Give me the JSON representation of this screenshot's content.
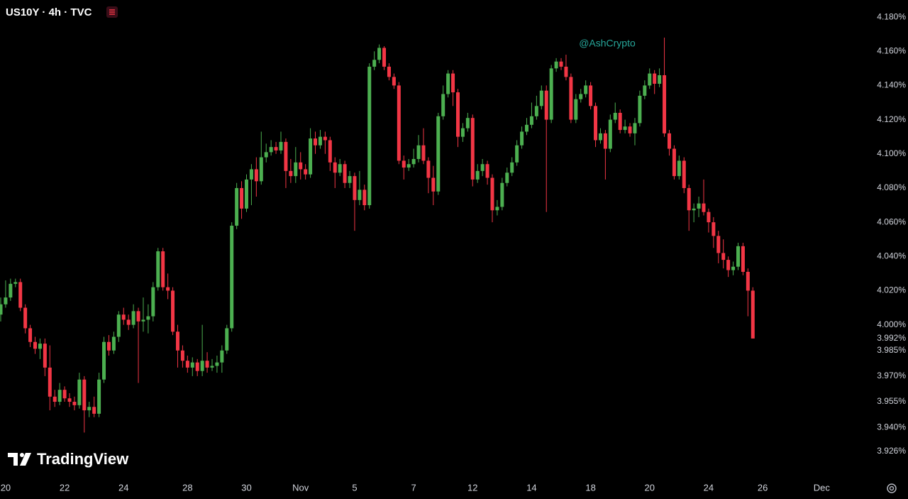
{
  "chart_data": {
    "type": "candlestick",
    "title": "US10Y · 4h · TVC",
    "annotation": "@AshCrypto",
    "brand": "TradingView",
    "up_color": "#4caf50",
    "down_color": "#f23645",
    "categories": [
      null,
      "20",
      null,
      null,
      null,
      null,
      null,
      null,
      null,
      null,
      null,
      null,
      null,
      "22",
      null,
      null,
      null,
      null,
      null,
      null,
      null,
      null,
      null,
      null,
      null,
      "24",
      null,
      null,
      null,
      null,
      null,
      null,
      null,
      null,
      null,
      null,
      null,
      null,
      "28",
      null,
      null,
      null,
      null,
      null,
      null,
      null,
      null,
      null,
      null,
      null,
      "30",
      null,
      null,
      null,
      null,
      null,
      null,
      null,
      null,
      null,
      null,
      "Nov",
      null,
      null,
      null,
      null,
      null,
      null,
      null,
      null,
      null,
      null,
      "5",
      null,
      null,
      null,
      null,
      null,
      null,
      null,
      null,
      null,
      null,
      null,
      "7",
      null,
      null,
      null,
      null,
      null,
      null,
      null,
      null,
      null,
      null,
      null,
      "12",
      null,
      null,
      null,
      null,
      null,
      null,
      null,
      null,
      null,
      null,
      null,
      "14",
      null,
      null,
      null,
      null,
      null,
      null,
      null,
      null,
      null,
      null,
      null,
      "18",
      null,
      null,
      null,
      null,
      null,
      null,
      null,
      null,
      null,
      null,
      null,
      "20",
      null,
      null,
      null,
      null,
      null,
      null,
      null,
      null,
      null,
      null,
      null,
      "24",
      null,
      null,
      null,
      null,
      null,
      null,
      null,
      null,
      null,
      null,
      "26",
      null,
      null,
      null,
      null,
      null,
      null,
      null,
      null,
      null,
      null,
      null,
      "Dec"
    ],
    "open": [
      4.006,
      4.012,
      4.016,
      4.024,
      4.025,
      4.01,
      3.998,
      3.99,
      3.986,
      3.989,
      3.975,
      3.958,
      3.955,
      3.962,
      3.957,
      3.955,
      3.953,
      3.968,
      3.95,
      3.952,
      3.948,
      3.968,
      3.99,
      3.985,
      3.993,
      4.006,
      4.003,
      4.0,
      4.008,
      4.002,
      4.003,
      4.005,
      4.022,
      4.043,
      4.022,
      4.02,
      3.996,
      3.985,
      3.979,
      3.975,
      3.978,
      3.973,
      3.979,
      3.975,
      3.976,
      3.978,
      3.985,
      3.998,
      4.058,
      4.08,
      4.068,
      4.085,
      4.091,
      4.084,
      4.098,
      4.101,
      4.104,
      4.102,
      4.107,
      4.09,
      4.087,
      4.095,
      4.091,
      4.088,
      4.109,
      4.105,
      4.11,
      4.108,
      4.095,
      4.089,
      4.094,
      4.083,
      4.087,
      4.073,
      4.079,
      4.07,
      4.151,
      4.155,
      4.162,
      4.151,
      4.145,
      4.14,
      4.096,
      4.092,
      4.094,
      4.097,
      4.105,
      4.096,
      4.086,
      4.078,
      4.122,
      4.135,
      4.147,
      4.136,
      4.11,
      4.115,
      4.121,
      4.085,
      4.09,
      4.094,
      4.086,
      4.067,
      4.069,
      4.083,
      4.089,
      4.095,
      4.105,
      4.113,
      4.117,
      4.122,
      4.128,
      4.137,
      4.12,
      4.15,
      4.154,
      4.151,
      4.145,
      4.12,
      4.132,
      4.135,
      4.14,
      4.128,
      4.108,
      4.112,
      4.103,
      4.12,
      4.124,
      4.114,
      4.116,
      4.112,
      4.118,
      4.134,
      4.14,
      4.147,
      4.141,
      4.146,
      4.112,
      4.103,
      4.087,
      4.096,
      4.08,
      4.067,
      4.068,
      4.071,
      4.066,
      4.06,
      4.052,
      4.042,
      4.038,
      4.032,
      4.034,
      4.046,
      4.031,
      4.02,
      null,
      null,
      null,
      null,
      null,
      null,
      null,
      null,
      null,
      null,
      null,
      null,
      null,
      null
    ],
    "high": [
      4.016,
      4.026,
      4.027,
      4.027,
      4.027,
      4.012,
      4.0,
      3.993,
      3.992,
      3.992,
      3.988,
      3.962,
      3.966,
      3.964,
      3.96,
      3.958,
      3.972,
      3.97,
      3.955,
      3.958,
      3.972,
      3.993,
      3.994,
      3.996,
      4.008,
      4.01,
      4.006,
      4.012,
      4.01,
      4.016,
      4.012,
      4.025,
      4.045,
      4.045,
      4.03,
      4.022,
      4.0,
      3.988,
      3.982,
      3.981,
      3.98,
      4.0,
      3.984,
      3.98,
      3.982,
      3.988,
      4.0,
      4.06,
      4.083,
      4.084,
      4.088,
      4.094,
      4.098,
      4.113,
      4.106,
      4.108,
      4.107,
      4.113,
      4.109,
      4.097,
      4.104,
      4.101,
      4.094,
      4.115,
      4.113,
      4.114,
      4.113,
      4.11,
      4.098,
      4.097,
      4.096,
      4.09,
      4.089,
      4.09,
      4.082,
      4.153,
      4.16,
      4.164,
      4.163,
      4.153,
      4.147,
      4.142,
      4.099,
      4.097,
      4.103,
      4.111,
      4.115,
      4.098,
      4.093,
      4.124,
      4.14,
      4.149,
      4.149,
      4.138,
      4.118,
      4.124,
      4.123,
      4.094,
      4.097,
      4.096,
      4.088,
      4.073,
      4.086,
      4.092,
      4.098,
      4.108,
      4.116,
      4.121,
      4.13,
      4.134,
      4.14,
      4.14,
      4.152,
      4.156,
      4.156,
      4.158,
      4.147,
      4.135,
      4.138,
      4.143,
      4.142,
      4.13,
      4.115,
      4.114,
      4.123,
      4.13,
      4.126,
      4.12,
      4.118,
      4.121,
      4.137,
      4.143,
      4.15,
      4.149,
      4.15,
      4.168,
      4.114,
      4.105,
      4.099,
      4.098,
      4.082,
      4.071,
      4.075,
      4.085,
      4.068,
      4.063,
      4.055,
      4.05,
      4.04,
      4.037,
      4.048,
      4.048,
      4.033,
      4.022,
      null,
      null,
      null,
      null,
      null,
      null,
      null,
      null,
      null,
      null,
      null,
      null,
      null,
      null
    ],
    "low": [
      4.002,
      4.01,
      4.014,
      4.022,
      4.008,
      3.995,
      3.987,
      3.983,
      3.98,
      3.97,
      3.95,
      3.952,
      3.953,
      3.955,
      3.952,
      3.95,
      3.951,
      3.937,
      3.946,
      3.946,
      3.946,
      3.966,
      3.982,
      3.983,
      3.99,
      4.0,
      3.997,
      3.998,
      3.966,
      3.996,
      3.995,
      4.002,
      4.02,
      4.02,
      4.015,
      3.994,
      3.975,
      3.975,
      3.972,
      3.97,
      3.97,
      3.97,
      3.972,
      3.973,
      3.972,
      3.972,
      3.983,
      3.996,
      4.056,
      4.062,
      4.066,
      4.07,
      4.075,
      4.082,
      4.095,
      4.099,
      4.1,
      4.1,
      4.08,
      4.083,
      4.083,
      4.085,
      4.085,
      4.086,
      4.1,
      4.103,
      4.1,
      4.09,
      4.08,
      4.087,
      4.08,
      4.08,
      4.055,
      4.07,
      4.067,
      4.068,
      4.149,
      4.153,
      4.149,
      4.143,
      4.138,
      4.094,
      4.085,
      4.09,
      4.092,
      4.095,
      4.094,
      4.077,
      4.07,
      4.076,
      4.12,
      4.133,
      4.128,
      4.104,
      4.107,
      4.113,
      4.081,
      4.083,
      4.087,
      4.082,
      4.06,
      4.064,
      4.067,
      4.081,
      4.087,
      4.093,
      4.103,
      4.111,
      4.115,
      4.12,
      4.126,
      4.066,
      4.118,
      4.148,
      4.149,
      4.143,
      4.118,
      4.118,
      4.13,
      4.133,
      4.126,
      4.104,
      4.106,
      4.085,
      4.101,
      4.118,
      4.112,
      4.112,
      4.11,
      4.105,
      4.116,
      4.132,
      4.138,
      4.135,
      4.139,
      4.11,
      4.099,
      4.085,
      4.085,
      4.077,
      4.055,
      4.06,
      4.063,
      4.064,
      4.054,
      4.045,
      4.036,
      4.033,
      4.028,
      4.029,
      4.032,
      4.029,
      4.005,
      3.992,
      null,
      null,
      null,
      null,
      null,
      null,
      null,
      null,
      null,
      null,
      null,
      null,
      null,
      null
    ],
    "close": [
      4.012,
      4.016,
      4.024,
      4.025,
      4.01,
      3.998,
      3.99,
      3.986,
      3.989,
      3.975,
      3.958,
      3.955,
      3.962,
      3.957,
      3.955,
      3.953,
      3.968,
      3.95,
      3.952,
      3.948,
      3.968,
      3.99,
      3.985,
      3.993,
      4.006,
      4.003,
      4.0,
      4.008,
      4.002,
      4.003,
      4.005,
      4.022,
      4.043,
      4.022,
      4.02,
      3.996,
      3.985,
      3.979,
      3.975,
      3.978,
      3.973,
      3.979,
      3.975,
      3.976,
      3.978,
      3.985,
      3.998,
      4.058,
      4.08,
      4.068,
      4.085,
      4.091,
      4.084,
      4.098,
      4.101,
      4.104,
      4.102,
      4.107,
      4.09,
      4.087,
      4.095,
      4.091,
      4.088,
      4.109,
      4.105,
      4.11,
      4.108,
      4.095,
      4.089,
      4.094,
      4.083,
      4.087,
      4.073,
      4.079,
      4.07,
      4.151,
      4.155,
      4.162,
      4.151,
      4.145,
      4.14,
      4.096,
      4.092,
      4.094,
      4.097,
      4.105,
      4.096,
      4.086,
      4.078,
      4.122,
      4.135,
      4.147,
      4.136,
      4.11,
      4.115,
      4.121,
      4.085,
      4.09,
      4.094,
      4.086,
      4.067,
      4.069,
      4.083,
      4.089,
      4.095,
      4.105,
      4.113,
      4.117,
      4.122,
      4.128,
      4.137,
      4.12,
      4.15,
      4.154,
      4.151,
      4.145,
      4.12,
      4.132,
      4.135,
      4.14,
      4.128,
      4.108,
      4.112,
      4.103,
      4.12,
      4.124,
      4.114,
      4.116,
      4.112,
      4.118,
      4.134,
      4.14,
      4.147,
      4.141,
      4.146,
      4.112,
      4.103,
      4.087,
      4.096,
      4.08,
      4.067,
      4.068,
      4.071,
      4.066,
      4.06,
      4.052,
      4.042,
      4.038,
      4.032,
      4.034,
      4.046,
      4.031,
      4.02,
      3.992,
      null,
      null,
      null,
      null,
      null,
      null,
      null,
      null,
      null,
      null,
      null,
      null,
      null,
      null
    ],
    "ylim": [
      3.911,
      4.19
    ],
    "yticks": [
      {
        "value": 4.18,
        "label": "4.180%"
      },
      {
        "value": 4.16,
        "label": "4.160%"
      },
      {
        "value": 4.14,
        "label": "4.140%"
      },
      {
        "value": 4.12,
        "label": "4.120%"
      },
      {
        "value": 4.1,
        "label": "4.100%"
      },
      {
        "value": 4.08,
        "label": "4.080%"
      },
      {
        "value": 4.06,
        "label": "4.060%"
      },
      {
        "value": 4.04,
        "label": "4.040%"
      },
      {
        "value": 4.02,
        "label": "4.020%"
      },
      {
        "value": 4.0,
        "label": "4.000%"
      },
      {
        "value": 3.992,
        "label": "3.992%"
      },
      {
        "value": 3.985,
        "label": "3.985%"
      },
      {
        "value": 3.97,
        "label": "3.970%"
      },
      {
        "value": 3.955,
        "label": "3.955%"
      },
      {
        "value": 3.94,
        "label": "3.940%"
      },
      {
        "value": 3.926,
        "label": "3.926%"
      }
    ],
    "grid": false
  }
}
